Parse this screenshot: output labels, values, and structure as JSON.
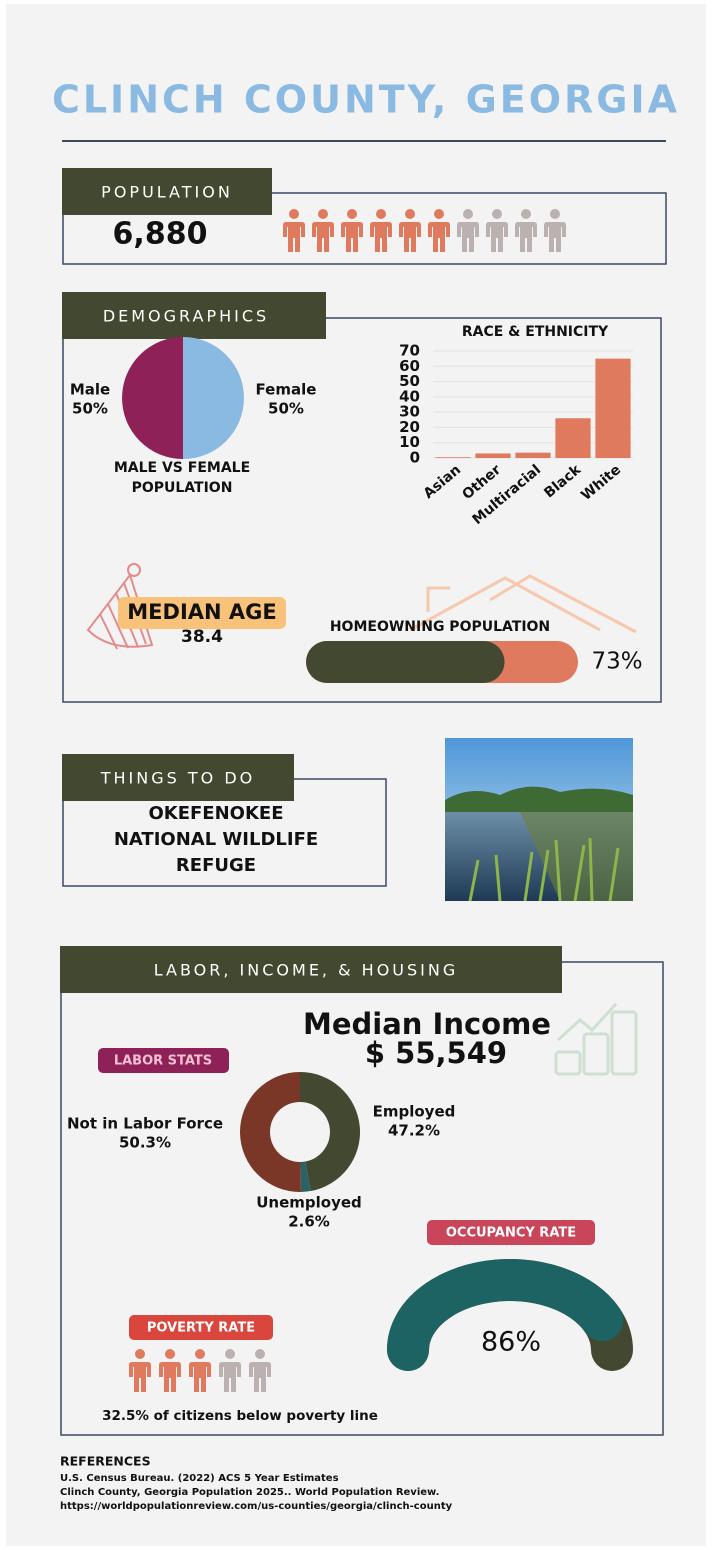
{
  "title": "CLINCH COUNTY, GEORGIA",
  "population": {
    "heading": "POPULATION",
    "value": "6,880"
  },
  "demographics": {
    "heading": "DEMOGRAPHICS",
    "sex_chart": {
      "type": "pie",
      "title": "MALE VS FEMALE POPULATION",
      "categories": [
        "Male",
        "Female"
      ],
      "values": [
        50,
        50
      ],
      "value_labels": [
        "50%",
        "50%"
      ],
      "colors": [
        "#8ab9e2",
        "#8e2157"
      ]
    },
    "race_chart": {
      "type": "bar",
      "title": "RACE & ETHNICITY",
      "categories": [
        "Asian",
        "Other",
        "Multiracial",
        "Black",
        "White"
      ],
      "values": [
        0.5,
        3,
        3.5,
        26,
        65
      ],
      "color": "#e07a5f",
      "ylim": [
        0,
        70
      ],
      "yticks": [
        0,
        10,
        20,
        30,
        40,
        50,
        60,
        70
      ],
      "grid": true
    },
    "median_age": {
      "label": "MEDIAN AGE",
      "value": 38.4
    },
    "homeowning": {
      "label": "HOMEOWNING POPULATION",
      "value": 73,
      "value_label": "73%"
    }
  },
  "things_to_do": {
    "heading": "THINGS TO DO",
    "text": "OKEFENOKEE NATIONAL WILDLIFE REFUGE"
  },
  "labor": {
    "heading": "LABOR, INCOME, & HOUSING",
    "median_income": {
      "label": "Median Income",
      "value": "$ 55,549"
    },
    "labor_stats": {
      "type": "donut",
      "title": "LABOR STATS",
      "categories": [
        "Employed",
        "Unemployed",
        "Not in Labor Force"
      ],
      "values": [
        47.2,
        2.6,
        50.3
      ],
      "value_labels": [
        "47.2%",
        "2.6%",
        "50.3%"
      ],
      "colors": [
        "#434830",
        "#2a6266",
        "#7a3728"
      ]
    },
    "occupancy": {
      "label": "OCCUPANCY RATE",
      "value": 86,
      "value_label": "86%"
    },
    "poverty": {
      "label": "POVERTY RATE",
      "text": "32.5% of citizens below poverty line"
    }
  },
  "references": {
    "heading": "REFERENCES",
    "items": [
      "U.S. Census Bureau. (2022) ACS 5 Year Estimates",
      "Clinch County, Georgia Population 2025.. World Population Review.",
      "https://worldpopulationreview.com/us-counties/georgia/clinch-county"
    ]
  }
}
